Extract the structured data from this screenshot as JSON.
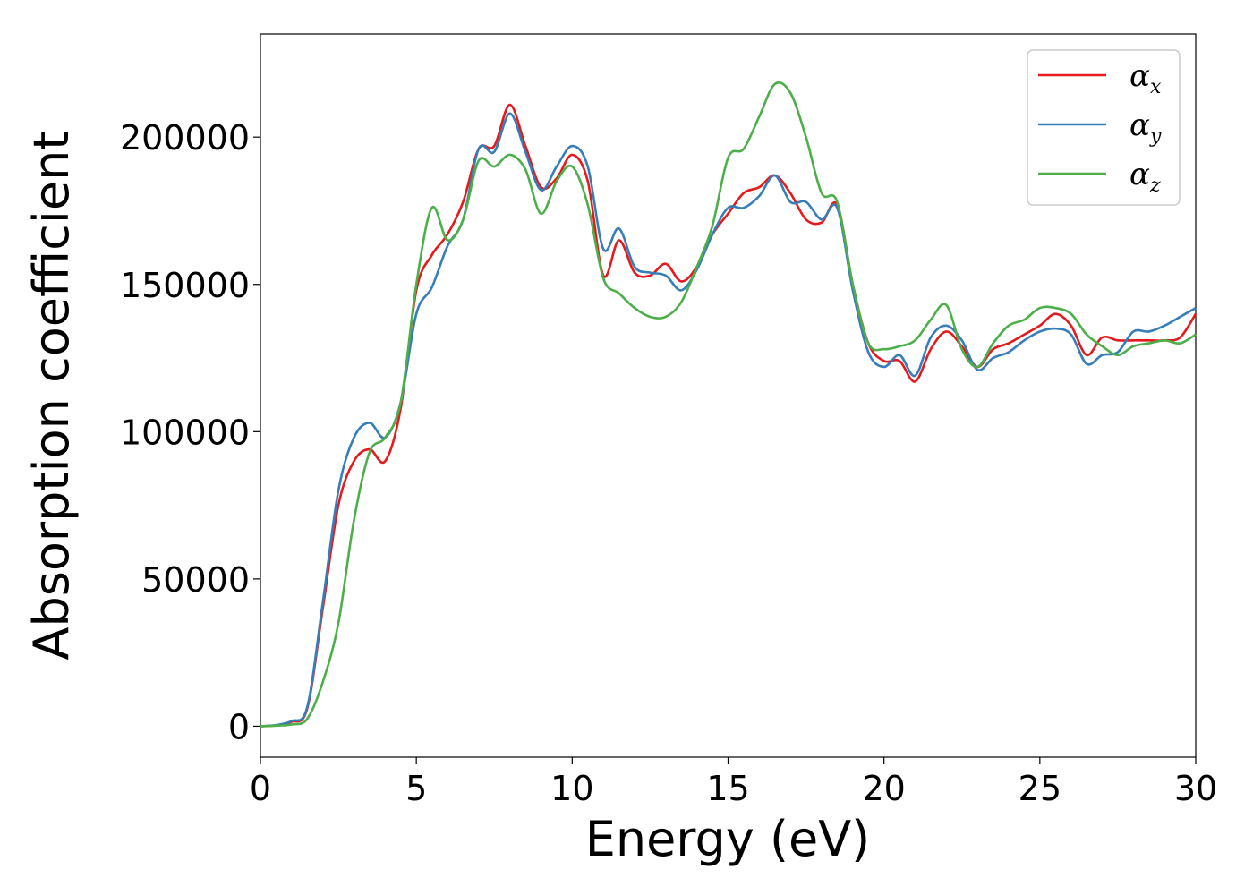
{
  "chart_data": {
    "type": "line",
    "title": "",
    "xlabel": "Energy (eV)",
    "ylabel": "Absorption coefficient",
    "xlim": [
      0,
      30
    ],
    "ylim": [
      -10500,
      235000
    ],
    "xticks": [
      0,
      5,
      10,
      15,
      20,
      25,
      30
    ],
    "xtick_labels": [
      "0",
      "5",
      "10",
      "15",
      "20",
      "25",
      "30"
    ],
    "yticks": [
      0,
      50000,
      100000,
      150000,
      200000
    ],
    "ytick_labels": [
      "0",
      "50000",
      "100000",
      "150000",
      "200000"
    ],
    "grid": false,
    "legend": {
      "placement": "top-right"
    },
    "x": [
      0,
      0.5,
      1,
      1.5,
      2,
      2.5,
      3,
      3.5,
      4,
      4.5,
      5,
      5.5,
      6,
      6.5,
      7,
      7.5,
      8,
      8.5,
      9,
      9.5,
      10,
      10.5,
      11,
      11.5,
      12,
      12.5,
      13,
      13.5,
      14,
      14.5,
      15,
      15.5,
      16,
      16.5,
      17,
      17.5,
      18,
      18.5,
      19,
      19.5,
      20,
      20.5,
      21,
      21.5,
      22,
      22.5,
      23,
      23.5,
      24,
      24.5,
      25,
      25.5,
      26,
      26.5,
      27,
      27.5,
      28,
      28.5,
      29,
      29.5,
      30
    ],
    "series": [
      {
        "name": "α",
        "subscript": "x",
        "color": "#e41a1c",
        "values": [
          0,
          300,
          1500,
          6000,
          40000,
          75000,
          90000,
          94000,
          90000,
          108000,
          148000,
          160000,
          167000,
          178000,
          196000,
          197000,
          211000,
          197000,
          183000,
          186000,
          194000,
          185000,
          153000,
          165000,
          154000,
          153000,
          157000,
          151000,
          156000,
          167000,
          174000,
          181000,
          183000,
          187000,
          181000,
          172000,
          171000,
          177000,
          150000,
          130000,
          124000,
          124000,
          117000,
          128000,
          134000,
          129000,
          122000,
          128000,
          130000,
          133000,
          136000,
          140000,
          136000,
          126000,
          132000,
          131000,
          131000,
          131000,
          131000,
          132000,
          140000
        ]
      },
      {
        "name": "α",
        "subscript": "y",
        "color": "#377eb8",
        "values": [
          0,
          400,
          1800,
          6500,
          42000,
          80000,
          98000,
          103000,
          98000,
          110000,
          140000,
          149000,
          163000,
          172000,
          196000,
          195000,
          208000,
          195000,
          182000,
          190000,
          197000,
          190000,
          162000,
          169000,
          156000,
          154000,
          153000,
          148000,
          155000,
          167000,
          176000,
          176000,
          180000,
          187000,
          178000,
          178000,
          172000,
          176000,
          148000,
          127000,
          122000,
          126000,
          119000,
          132000,
          136000,
          131000,
          121000,
          125000,
          127000,
          131000,
          134000,
          135000,
          133000,
          123000,
          126000,
          127000,
          134000,
          134000,
          136000,
          139000,
          142000
        ]
      },
      {
        "name": "α",
        "subscript": "z",
        "color": "#4daf4a",
        "values": [
          0,
          200,
          600,
          2500,
          15000,
          35000,
          70000,
          93000,
          98000,
          110000,
          150000,
          176000,
          165000,
          172000,
          192000,
          190000,
          194000,
          189000,
          174000,
          185000,
          190000,
          177000,
          152000,
          147000,
          142000,
          139000,
          139000,
          144000,
          156000,
          170000,
          193000,
          196000,
          207000,
          218000,
          215000,
          200000,
          181000,
          178000,
          150000,
          130000,
          128000,
          129000,
          131000,
          138000,
          143000,
          128000,
          122000,
          130000,
          136000,
          138000,
          142000,
          142000,
          140000,
          133000,
          129000,
          126000,
          129000,
          130000,
          131000,
          130000,
          133000
        ]
      }
    ]
  }
}
